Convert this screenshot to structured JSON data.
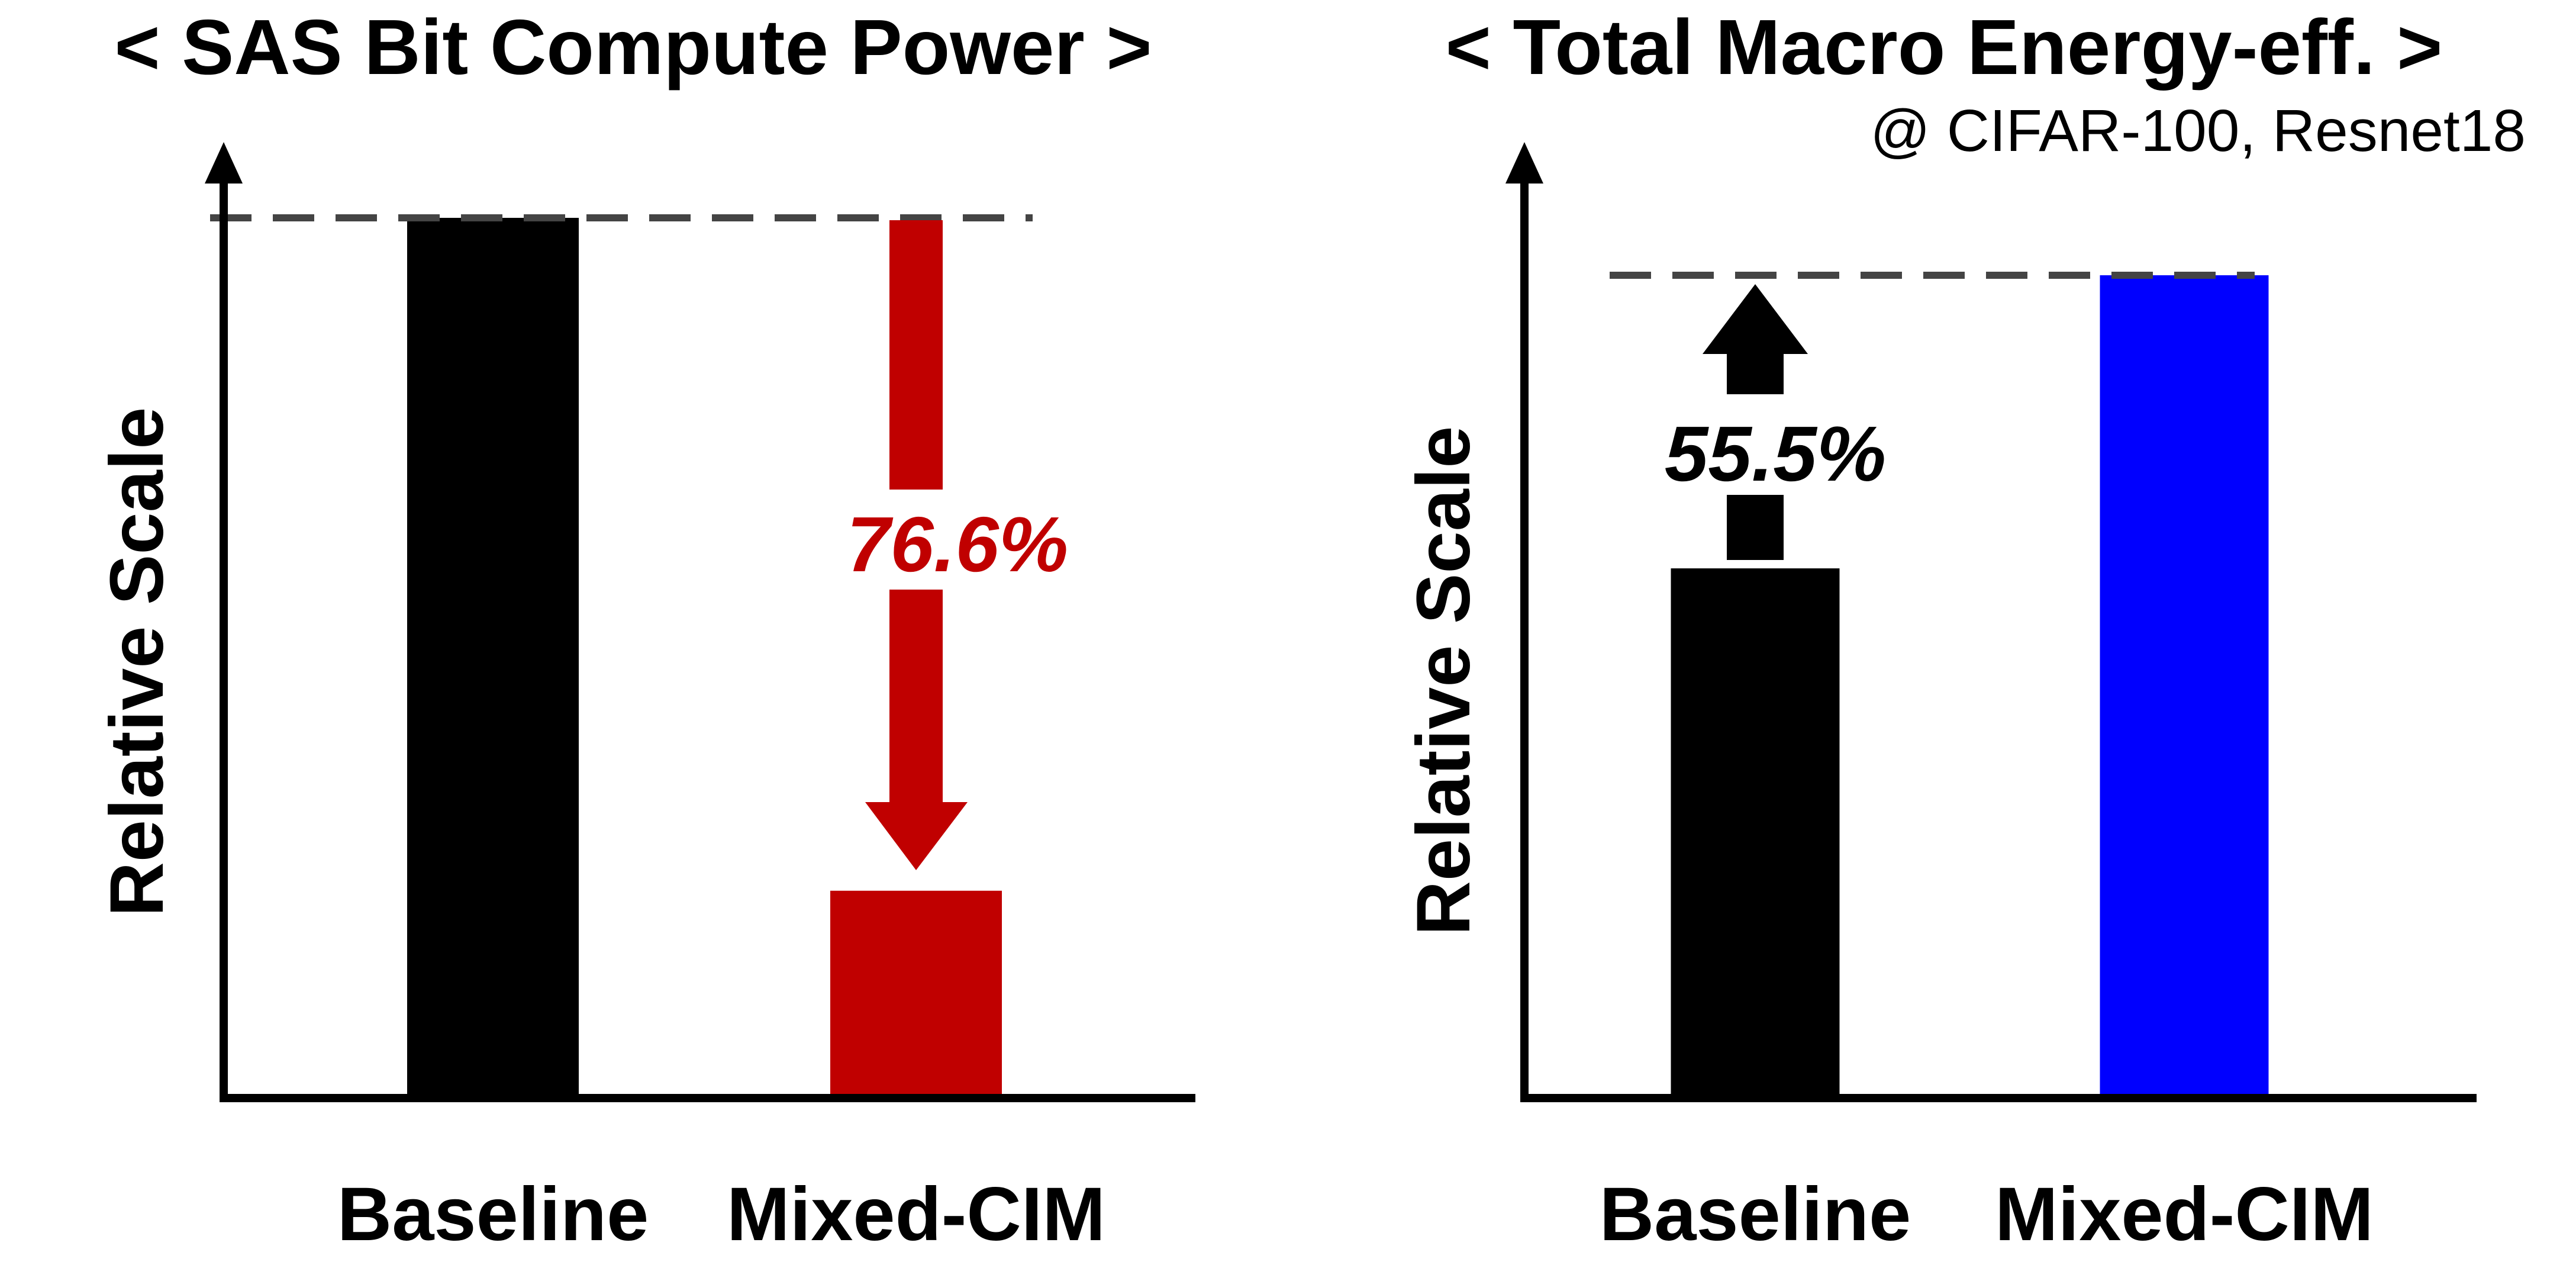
{
  "chart_data": [
    {
      "type": "bar",
      "title": "< SAS Bit Compute Power >",
      "subtitle": "",
      "ylabel": "Relative Scale",
      "xlabel": "",
      "categories": [
        "Baseline",
        "Mixed-CIM"
      ],
      "values": [
        1.0,
        0.234
      ],
      "ylim": [
        0,
        1.0
      ],
      "reference_line": 1.0,
      "bar_colors": [
        "#000000",
        "#c00000"
      ],
      "annotation": {
        "text": "76.6%",
        "color": "#c00000",
        "direction": "down"
      },
      "grid": false
    },
    {
      "type": "bar",
      "title": "< Total Macro Energy-eff. >",
      "subtitle": "@ CIFAR-100, Resnet18",
      "ylabel": "Relative Scale",
      "xlabel": "",
      "categories": [
        "Baseline",
        "Mixed-CIM"
      ],
      "values": [
        0.643,
        1.0
      ],
      "ylim": [
        0,
        1.0
      ],
      "reference_line": 1.0,
      "bar_colors": [
        "#000000",
        "#0000ff"
      ],
      "annotation": {
        "text": "55.5%",
        "color": "#000000",
        "direction": "up"
      },
      "grid": false
    }
  ]
}
